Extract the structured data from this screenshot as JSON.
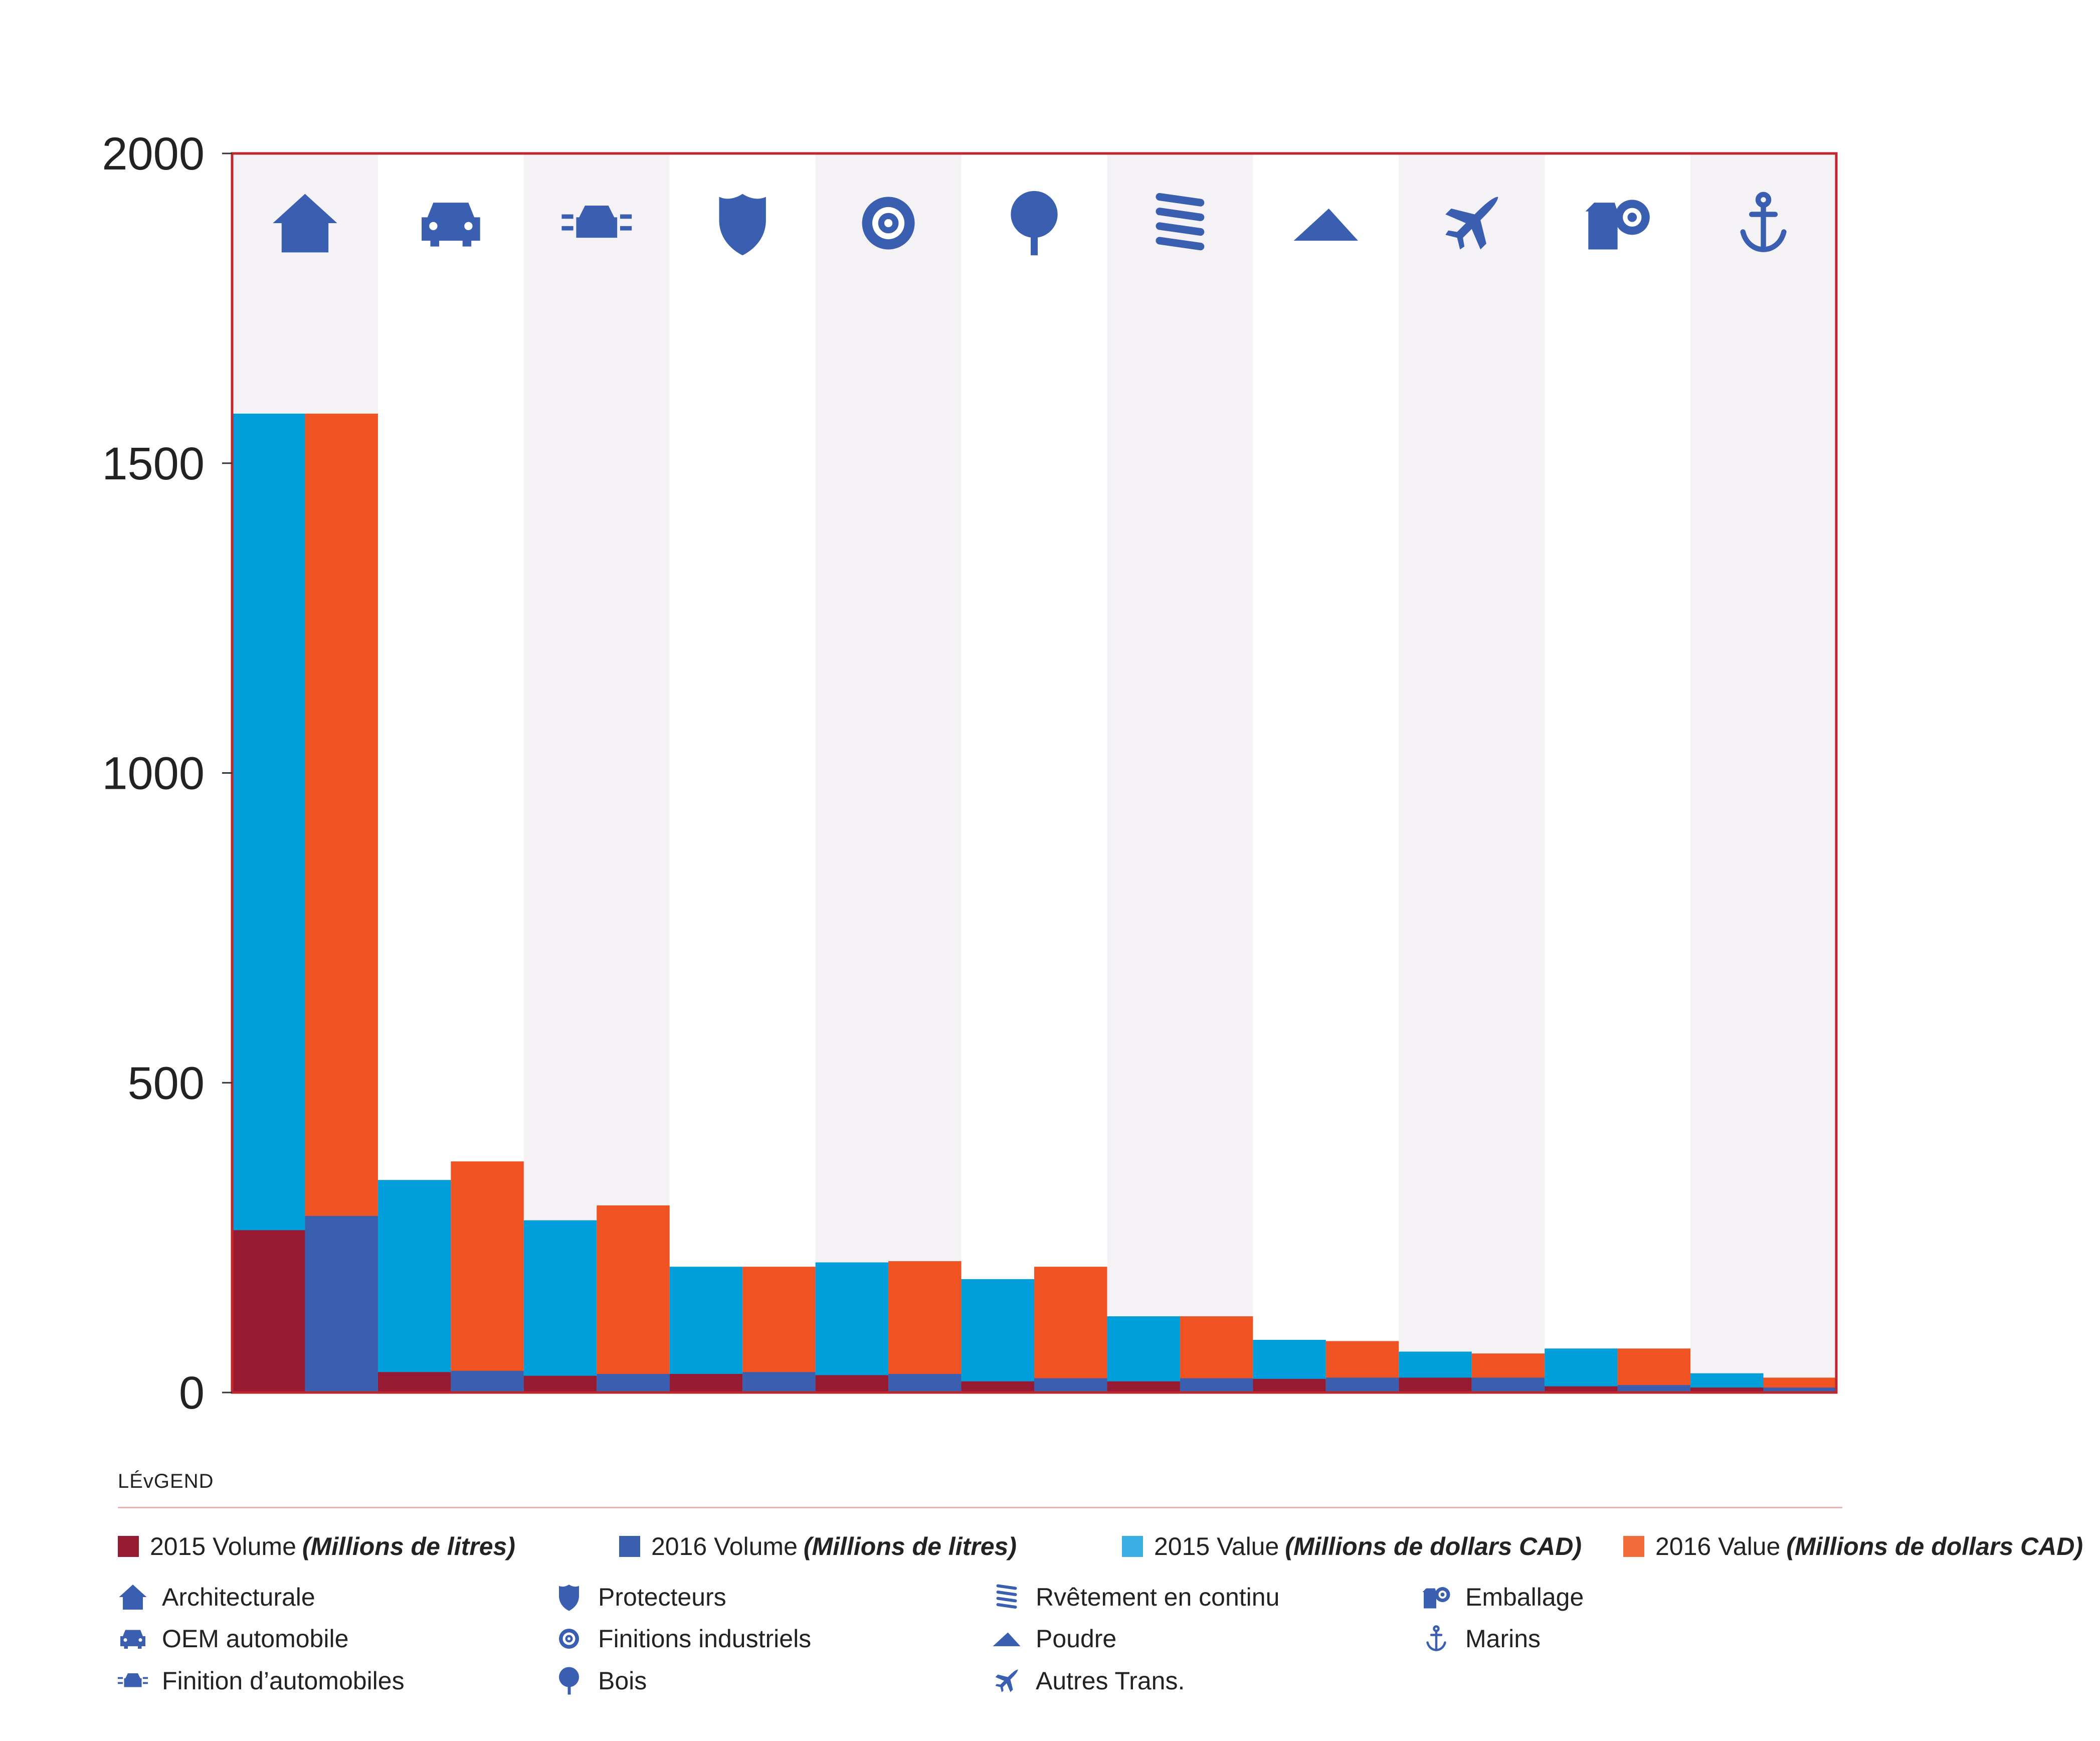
{
  "colors": {
    "vol2015": "#961a31",
    "vol2016": "#3a5fb0",
    "val2015": "#009edb",
    "val2016": "#ef5322",
    "icon": "#3a5fb0",
    "frame": "#c0272d",
    "band": "#f4f2f5"
  },
  "chart_data": {
    "type": "bar",
    "ylim": [
      0,
      2000
    ],
    "yticks": [
      "0",
      "500",
      "1000",
      "1500",
      "2000"
    ],
    "categories": [
      "Architecturale",
      "OEM automobile",
      "Finition d’automobiles",
      "Protecteurs",
      "Finitions industriels",
      "Bois",
      "Rvêtement en continu",
      "Poudre",
      "Autres Trans.",
      "Emballage",
      "Marins"
    ],
    "category_icons": [
      "house-icon",
      "car-icon",
      "car-refinish-icon",
      "shield-icon",
      "gear-icon",
      "tree-icon",
      "coil-icon",
      "powder-icon",
      "airplane-icon",
      "packaging-icon",
      "anchor-icon"
    ],
    "series": [
      {
        "name": "2015 Volume",
        "unit": "(Millions de litres)",
        "values": [
          262,
          33,
          27,
          30,
          28,
          18,
          18,
          22,
          24,
          10,
          8
        ]
      },
      {
        "name": "2016 Volume",
        "unit": "(Millions de litres)",
        "values": [
          285,
          35,
          30,
          33,
          30,
          23,
          23,
          24,
          24,
          12,
          8
        ]
      },
      {
        "name": "2015 Value",
        "unit": "(Millions de dollars CAD)",
        "values": [
          1580,
          343,
          278,
          203,
          210,
          183,
          123,
          85,
          66,
          71,
          31
        ]
      },
      {
        "name": "2016 Value",
        "unit": "(Millions de dollars CAD)",
        "values": [
          1580,
          373,
          302,
          203,
          212,
          203,
          123,
          83,
          63,
          71,
          24
        ]
      }
    ]
  },
  "legend": {
    "title": "LÉvGEND"
  }
}
